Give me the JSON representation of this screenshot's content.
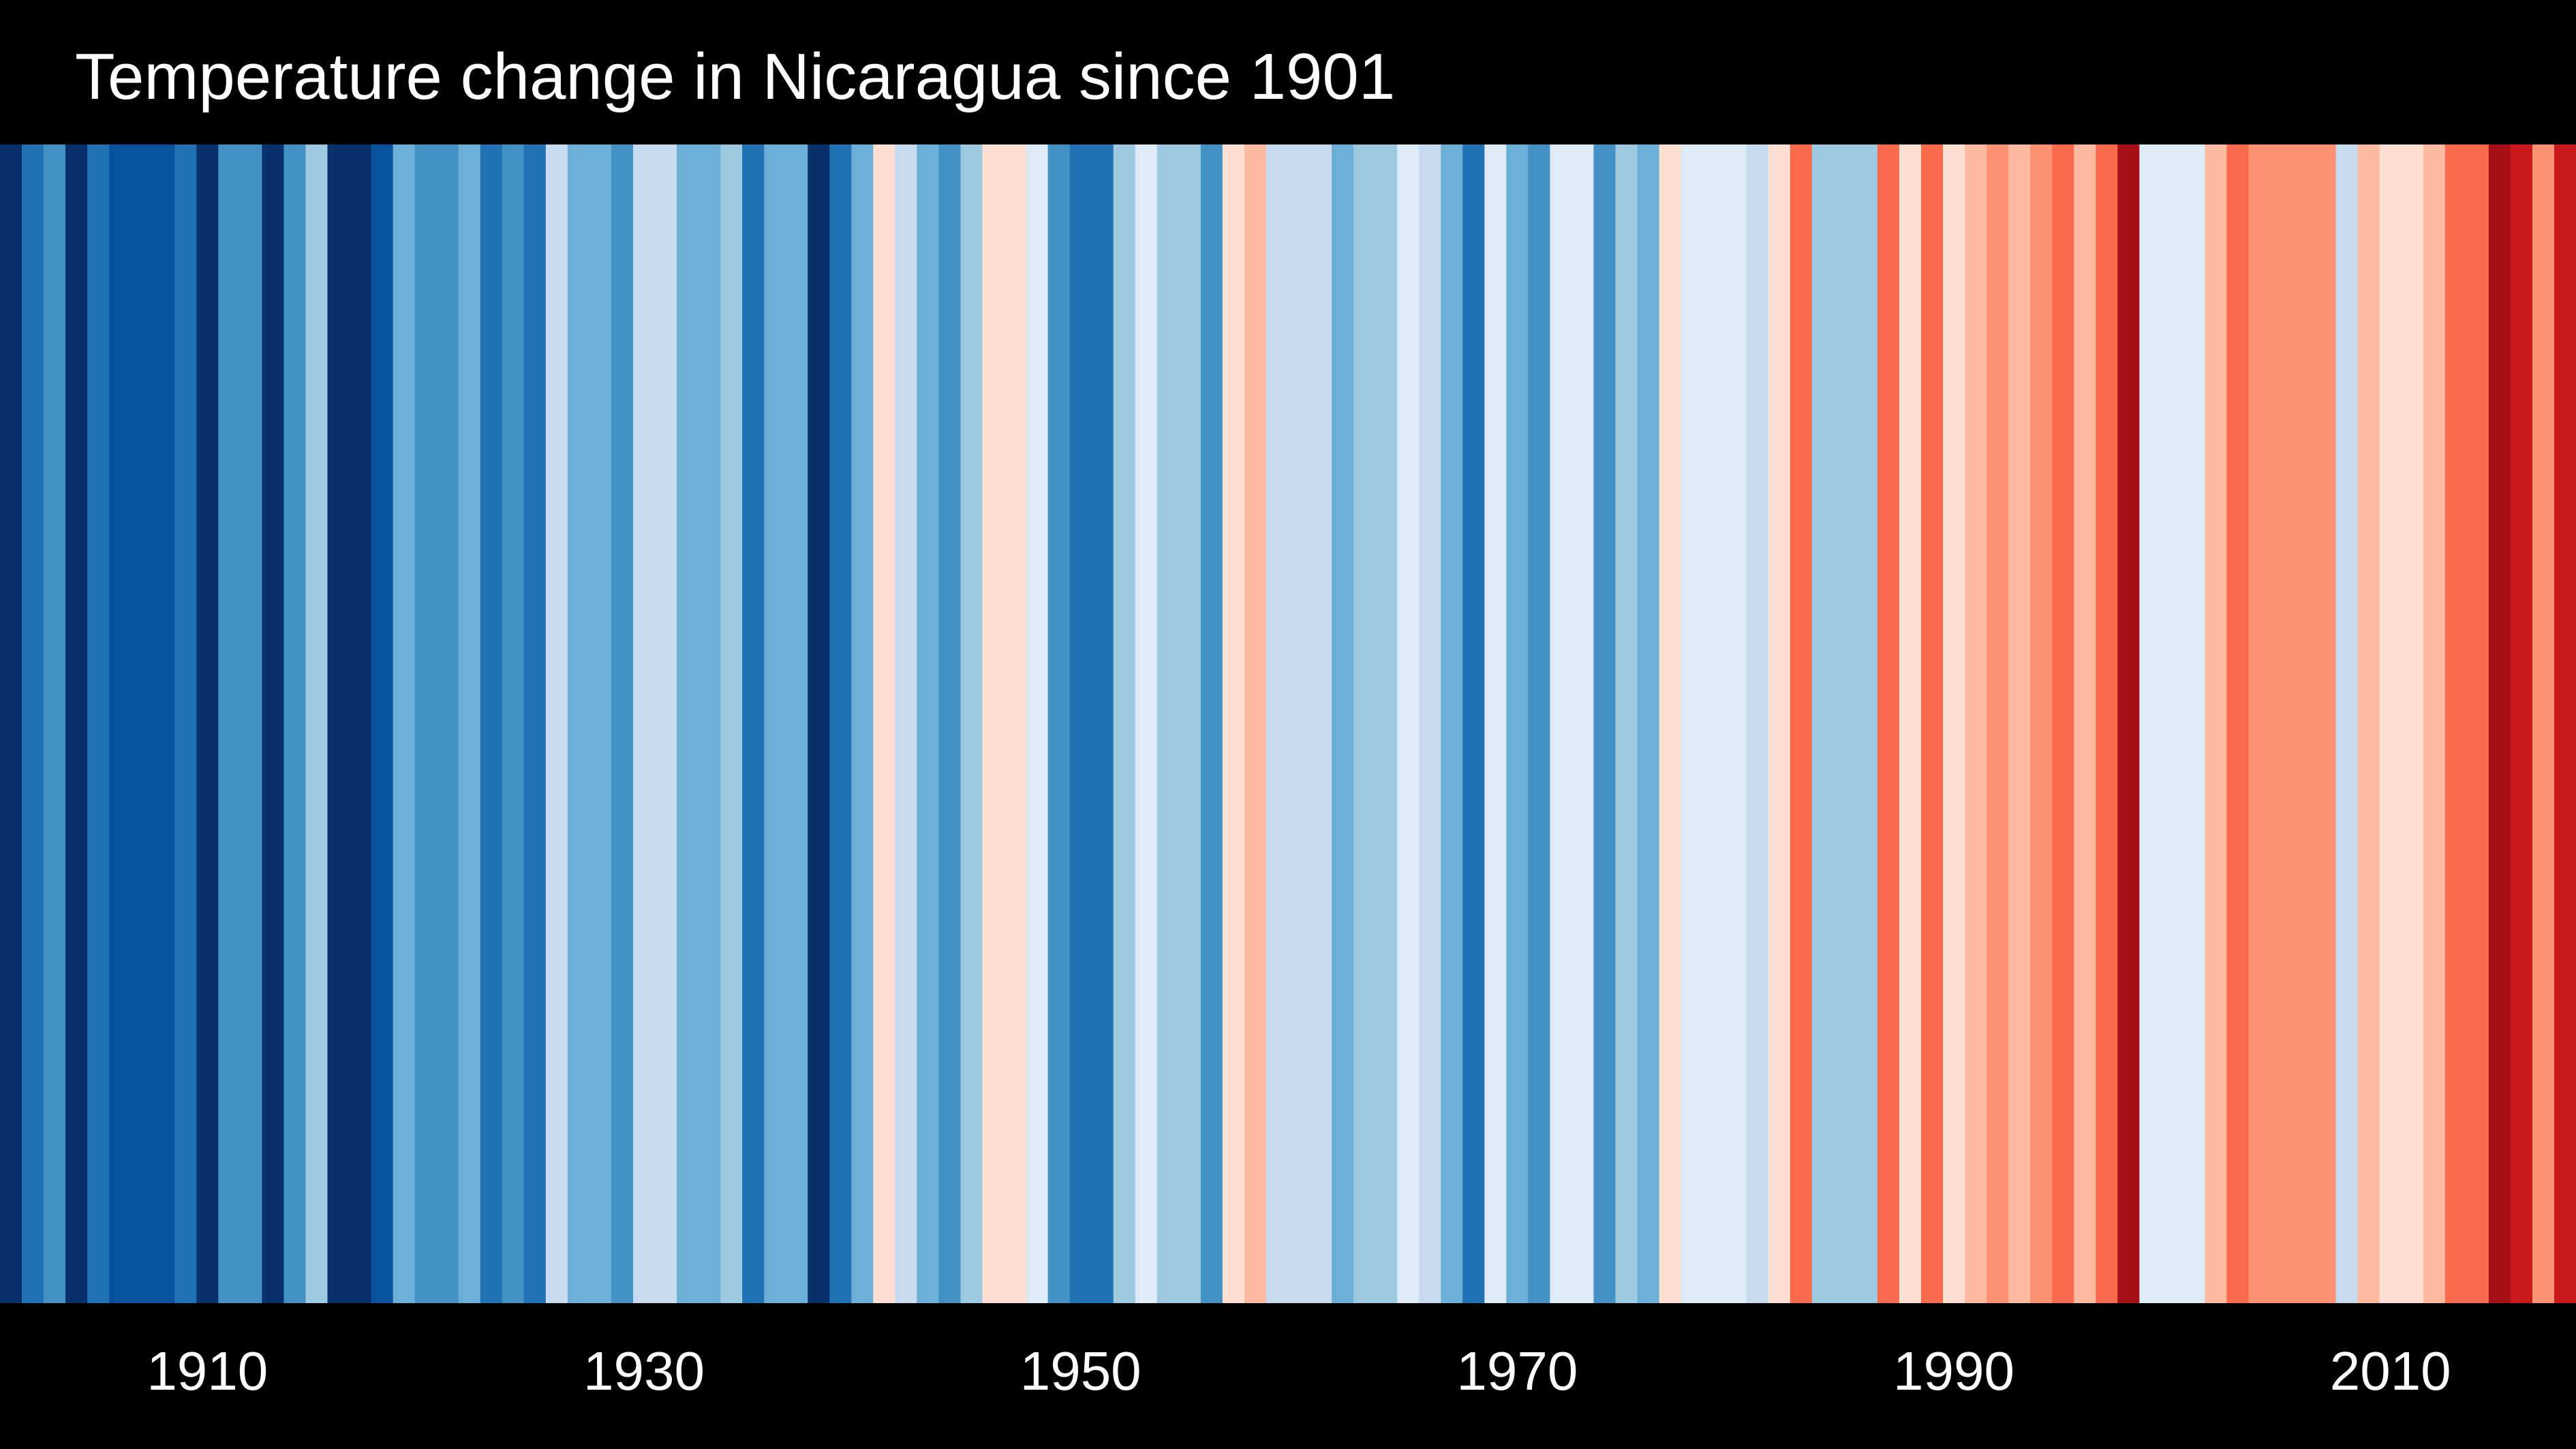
{
  "chart_data": {
    "type": "heatmap",
    "title": "Temperature change in Nicaragua since 1901",
    "x_start": 1901,
    "x_end": 2018,
    "xlim": [
      1901,
      2018
    ],
    "x_ticks": [
      "1910",
      "1930",
      "1950",
      "1970",
      "1990",
      "2010"
    ],
    "grid": false,
    "legend": "none",
    "palette": [
      "#08306b",
      "#08519c",
      "#2171b5",
      "#4292c6",
      "#6baed6",
      "#9ecae1",
      "#c6dbef",
      "#deebf7",
      "#fee0d2",
      "#fcbba1",
      "#fc9272",
      "#fb6a4a",
      "#ef3b2c",
      "#cb181d",
      "#a50f15",
      "#67000d"
    ],
    "stripes": [
      {
        "year": 1901,
        "color": "#08306b"
      },
      {
        "year": 1902,
        "color": "#2171b5"
      },
      {
        "year": 1903,
        "color": "#4292c6"
      },
      {
        "year": 1904,
        "color": "#08306b"
      },
      {
        "year": 1905,
        "color": "#2171b5"
      },
      {
        "year": 1906,
        "color": "#08519c"
      },
      {
        "year": 1907,
        "color": "#08519c"
      },
      {
        "year": 1908,
        "color": "#08519c"
      },
      {
        "year": 1909,
        "color": "#2171b5"
      },
      {
        "year": 1910,
        "color": "#08306b"
      },
      {
        "year": 1911,
        "color": "#4292c6"
      },
      {
        "year": 1912,
        "color": "#4292c6"
      },
      {
        "year": 1913,
        "color": "#08306b"
      },
      {
        "year": 1914,
        "color": "#4292c6"
      },
      {
        "year": 1915,
        "color": "#9ecae1"
      },
      {
        "year": 1916,
        "color": "#08306b"
      },
      {
        "year": 1917,
        "color": "#08306b"
      },
      {
        "year": 1918,
        "color": "#08519c"
      },
      {
        "year": 1919,
        "color": "#6baed6"
      },
      {
        "year": 1920,
        "color": "#4292c6"
      },
      {
        "year": 1921,
        "color": "#4292c6"
      },
      {
        "year": 1922,
        "color": "#6baed6"
      },
      {
        "year": 1923,
        "color": "#2171b5"
      },
      {
        "year": 1924,
        "color": "#4292c6"
      },
      {
        "year": 1925,
        "color": "#2171b5"
      },
      {
        "year": 1926,
        "color": "#c6dbef"
      },
      {
        "year": 1927,
        "color": "#6baed6"
      },
      {
        "year": 1928,
        "color": "#6baed6"
      },
      {
        "year": 1929,
        "color": "#4292c6"
      },
      {
        "year": 1930,
        "color": "#c6dbef"
      },
      {
        "year": 1931,
        "color": "#c6dbef"
      },
      {
        "year": 1932,
        "color": "#6baed6"
      },
      {
        "year": 1933,
        "color": "#6baed6"
      },
      {
        "year": 1934,
        "color": "#9ecae1"
      },
      {
        "year": 1935,
        "color": "#2171b5"
      },
      {
        "year": 1936,
        "color": "#6baed6"
      },
      {
        "year": 1937,
        "color": "#6baed6"
      },
      {
        "year": 1938,
        "color": "#08306b"
      },
      {
        "year": 1939,
        "color": "#2171b5"
      },
      {
        "year": 1940,
        "color": "#6baed6"
      },
      {
        "year": 1941,
        "color": "#fee0d2"
      },
      {
        "year": 1942,
        "color": "#c6dbef"
      },
      {
        "year": 1943,
        "color": "#6baed6"
      },
      {
        "year": 1944,
        "color": "#4292c6"
      },
      {
        "year": 1945,
        "color": "#9ecae1"
      },
      {
        "year": 1946,
        "color": "#fee0d2"
      },
      {
        "year": 1947,
        "color": "#fee0d2"
      },
      {
        "year": 1948,
        "color": "#deebf7"
      },
      {
        "year": 1949,
        "color": "#4292c6"
      },
      {
        "year": 1950,
        "color": "#2171b5"
      },
      {
        "year": 1951,
        "color": "#2171b5"
      },
      {
        "year": 1952,
        "color": "#9ecae1"
      },
      {
        "year": 1953,
        "color": "#deebf7"
      },
      {
        "year": 1954,
        "color": "#9ecae1"
      },
      {
        "year": 1955,
        "color": "#9ecae1"
      },
      {
        "year": 1956,
        "color": "#4292c6"
      },
      {
        "year": 1957,
        "color": "#fee0d2"
      },
      {
        "year": 1958,
        "color": "#fcbba1"
      },
      {
        "year": 1959,
        "color": "#c6dbef"
      },
      {
        "year": 1960,
        "color": "#c6dbef"
      },
      {
        "year": 1961,
        "color": "#c6dbef"
      },
      {
        "year": 1962,
        "color": "#6baed6"
      },
      {
        "year": 1963,
        "color": "#9ecae1"
      },
      {
        "year": 1964,
        "color": "#9ecae1"
      },
      {
        "year": 1965,
        "color": "#deebf7"
      },
      {
        "year": 1966,
        "color": "#c6dbef"
      },
      {
        "year": 1967,
        "color": "#6baed6"
      },
      {
        "year": 1968,
        "color": "#2171b5"
      },
      {
        "year": 1969,
        "color": "#deebf7"
      },
      {
        "year": 1970,
        "color": "#6baed6"
      },
      {
        "year": 1971,
        "color": "#4292c6"
      },
      {
        "year": 1972,
        "color": "#deebf7"
      },
      {
        "year": 1973,
        "color": "#deebf7"
      },
      {
        "year": 1974,
        "color": "#4292c6"
      },
      {
        "year": 1975,
        "color": "#9ecae1"
      },
      {
        "year": 1976,
        "color": "#6baed6"
      },
      {
        "year": 1977,
        "color": "#fee0d2"
      },
      {
        "year": 1978,
        "color": "#deebf7"
      },
      {
        "year": 1979,
        "color": "#deebf7"
      },
      {
        "year": 1980,
        "color": "#deebf7"
      },
      {
        "year": 1981,
        "color": "#c6dbef"
      },
      {
        "year": 1982,
        "color": "#fee0d2"
      },
      {
        "year": 1983,
        "color": "#fb6a4a"
      },
      {
        "year": 1984,
        "color": "#9ecae1"
      },
      {
        "year": 1985,
        "color": "#9ecae1"
      },
      {
        "year": 1986,
        "color": "#9ecae1"
      },
      {
        "year": 1987,
        "color": "#fb6a4a"
      },
      {
        "year": 1988,
        "color": "#fee0d2"
      },
      {
        "year": 1989,
        "color": "#fb6a4a"
      },
      {
        "year": 1990,
        "color": "#fee0d2"
      },
      {
        "year": 1991,
        "color": "#fcbba1"
      },
      {
        "year": 1992,
        "color": "#fc9272"
      },
      {
        "year": 1993,
        "color": "#fcbba1"
      },
      {
        "year": 1994,
        "color": "#fc9272"
      },
      {
        "year": 1995,
        "color": "#fb6a4a"
      },
      {
        "year": 1996,
        "color": "#fcbba1"
      },
      {
        "year": 1997,
        "color": "#fb6a4a"
      },
      {
        "year": 1998,
        "color": "#a50f15"
      },
      {
        "year": 1999,
        "color": "#deebf7"
      },
      {
        "year": 2000,
        "color": "#deebf7"
      },
      {
        "year": 2001,
        "color": "#deebf7"
      },
      {
        "year": 2002,
        "color": "#fcbba1"
      },
      {
        "year": 2003,
        "color": "#fb6a4a"
      },
      {
        "year": 2004,
        "color": "#fc9272"
      },
      {
        "year": 2005,
        "color": "#fc9272"
      },
      {
        "year": 2006,
        "color": "#fc9272"
      },
      {
        "year": 2007,
        "color": "#fc9272"
      },
      {
        "year": 2008,
        "color": "#c6dbef"
      },
      {
        "year": 2009,
        "color": "#fcbba1"
      },
      {
        "year": 2010,
        "color": "#fee0d2"
      },
      {
        "year": 2011,
        "color": "#fee0d2"
      },
      {
        "year": 2012,
        "color": "#fcbba1"
      },
      {
        "year": 2013,
        "color": "#fb6a4a"
      },
      {
        "year": 2014,
        "color": "#fb6a4a"
      },
      {
        "year": 2015,
        "color": "#a50f15"
      },
      {
        "year": 2016,
        "color": "#cb181d"
      },
      {
        "year": 2017,
        "color": "#fc9272"
      },
      {
        "year": 2018,
        "color": "#cb181d"
      }
    ]
  }
}
